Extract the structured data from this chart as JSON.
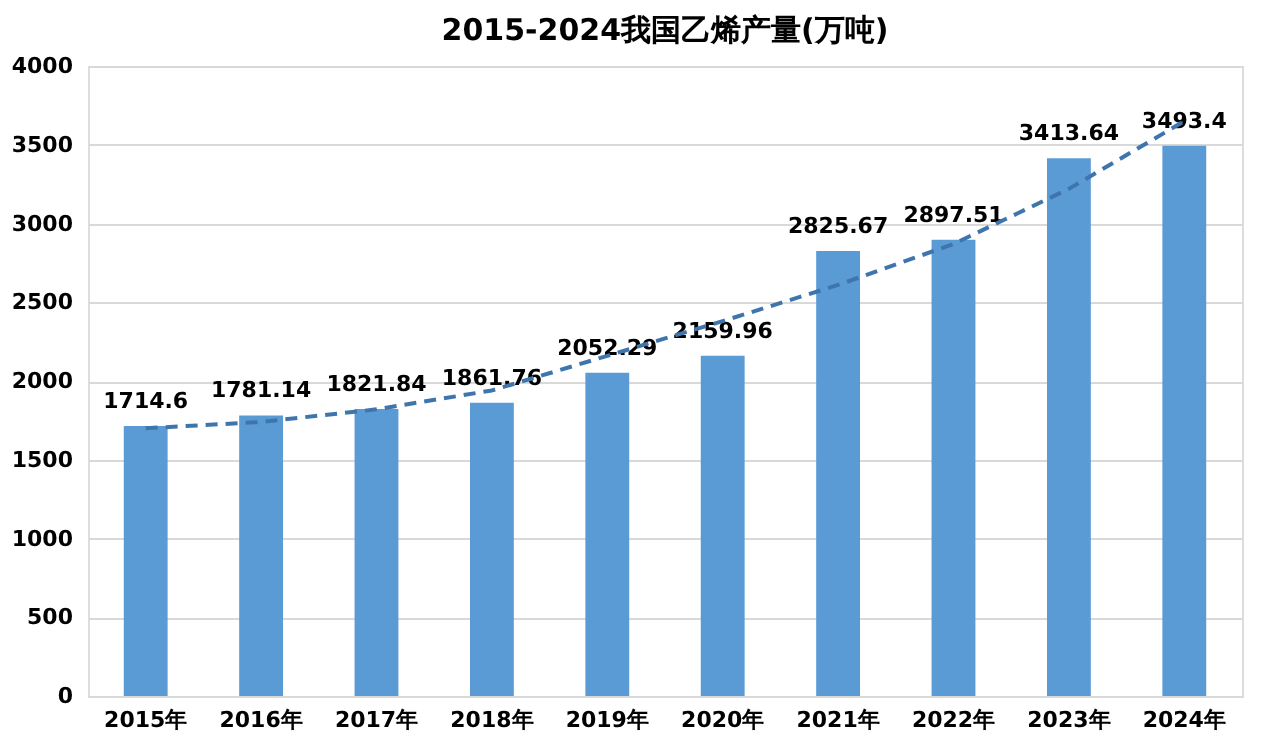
{
  "chart_data": {
    "type": "bar",
    "title": "2015-2024我国乙烯产量(万吨)",
    "categories": [
      "2015年",
      "2016年",
      "2017年",
      "2018年",
      "2019年",
      "2020年",
      "2021年",
      "2022年",
      "2023年",
      "2024年"
    ],
    "series": [
      {
        "color": "#5b9bd5",
        "values": [
          1714.6,
          1781.14,
          1821.84,
          1861.76,
          2052.29,
          2159.96,
          2825.67,
          2897.51,
          3413.64,
          3493.4
        ],
        "value_labels": [
          "1714.6",
          "1781.14",
          "1821.84",
          "1861.76",
          "2052.29",
          "2159.96",
          "2825.67",
          "2897.51",
          "3413.64",
          "3493.4"
        ]
      },
      {
        "type": "line",
        "color": "#3f75ad",
        "line_style": "dashed",
        "values": [
          1700,
          1740,
          1820,
          1940,
          2160,
          2380,
          2610,
          2870,
          3220,
          3650
        ]
      }
    ],
    "ylim": [
      0,
      4000
    ],
    "yticks": [
      0,
      500,
      1000,
      1500,
      2000,
      2500,
      3000,
      3500,
      4000
    ],
    "grid": "y"
  }
}
